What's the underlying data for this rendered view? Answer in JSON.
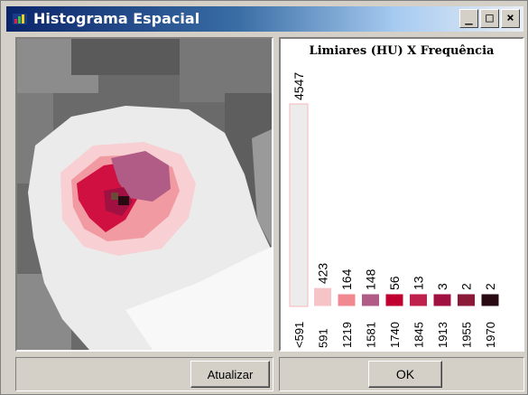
{
  "window": {
    "title": "Histograma Espacial",
    "minimize_glyph": "_",
    "maximize_glyph": "□",
    "close_glyph": "×"
  },
  "buttons": {
    "update_label": "Atualizar",
    "ok_label": "OK"
  },
  "colors": {
    "title_bar_start": "#0a246a",
    "bin_colors": [
      "#ececec",
      "#f6c4c6",
      "#f08a90",
      "#b05c86",
      "#c00030",
      "#c0204c",
      "#a01040",
      "#8a1a38",
      "#2a0a12"
    ]
  },
  "chart_data": {
    "type": "bar",
    "title": "Limiares (HU) X Frequência",
    "categories": [
      "<591",
      "591",
      "1219",
      "1581",
      "1740",
      "1845",
      "1913",
      "1955",
      "1970"
    ],
    "values": [
      4547,
      423,
      164,
      148,
      56,
      13,
      3,
      2,
      2
    ],
    "value_labels": [
      "4547",
      "423",
      "164",
      "148",
      "56",
      "13",
      "3",
      "2",
      "2"
    ],
    "ylim": [
      0,
      4547
    ],
    "grid": false
  }
}
